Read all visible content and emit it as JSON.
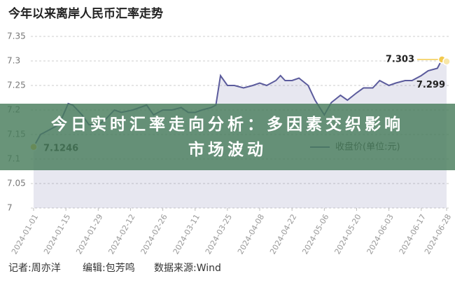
{
  "chart_data": {
    "type": "line",
    "title": "今年以来离岸人民币汇率走势",
    "x": [
      "2024-01-01",
      "2024-01-04",
      "2024-01-08",
      "2024-01-12",
      "2024-01-16",
      "2024-01-18",
      "2024-01-22",
      "2024-01-25",
      "2024-01-29",
      "2024-02-01",
      "2024-02-05",
      "2024-02-08",
      "2024-02-13",
      "2024-02-16",
      "2024-02-19",
      "2024-02-22",
      "2024-02-26",
      "2024-03-01",
      "2024-03-05",
      "2024-03-08",
      "2024-03-11",
      "2024-03-14",
      "2024-03-18",
      "2024-03-20",
      "2024-03-22",
      "2024-03-25",
      "2024-03-28",
      "2024-04-01",
      "2024-04-05",
      "2024-04-08",
      "2024-04-11",
      "2024-04-15",
      "2024-04-17",
      "2024-04-19",
      "2024-04-22",
      "2024-04-25",
      "2024-04-29",
      "2024-05-02",
      "2024-05-06",
      "2024-05-09",
      "2024-05-13",
      "2024-05-16",
      "2024-05-20",
      "2024-05-23",
      "2024-05-27",
      "2024-05-30",
      "2024-06-03",
      "2024-06-06",
      "2024-06-10",
      "2024-06-13",
      "2024-06-17",
      "2024-06-20",
      "2024-06-24",
      "2024-06-26",
      "2024-06-28"
    ],
    "series": [
      {
        "name": "收盘价(单位:元)",
        "color": "#5b5b9c",
        "values": [
          7.1246,
          7.15,
          7.16,
          7.17,
          7.213,
          7.21,
          7.19,
          7.17,
          7.17,
          7.18,
          7.2,
          7.195,
          7.2,
          7.205,
          7.21,
          7.19,
          7.2,
          7.2,
          7.205,
          7.195,
          7.195,
          7.2,
          7.205,
          7.21,
          7.27,
          7.25,
          7.25,
          7.245,
          7.25,
          7.255,
          7.25,
          7.26,
          7.27,
          7.26,
          7.26,
          7.265,
          7.25,
          7.22,
          7.19,
          7.215,
          7.23,
          7.22,
          7.235,
          7.245,
          7.245,
          7.26,
          7.25,
          7.255,
          7.26,
          7.26,
          7.27,
          7.28,
          7.285,
          7.303,
          7.299
        ]
      }
    ],
    "xlim": [
      "2024-01-01",
      "2024-06-28"
    ],
    "xticks": [
      "2024-01-01",
      "2024-01-15",
      "2024-01-29",
      "2024-02-12",
      "2024-02-26",
      "2024-03-11",
      "2024-03-25",
      "2024-04-08",
      "2024-04-22",
      "2024-05-06",
      "2024-05-20",
      "2024-06-03",
      "2024-06-17",
      "2024-06-28"
    ],
    "ylim": [
      7,
      7.35
    ],
    "yticks": [
      7,
      7.05,
      7.1,
      7.15,
      7.2,
      7.25,
      7.3,
      7.35
    ],
    "grid": true,
    "legend": "lower right"
  },
  "banner": {
    "lines": [
      "今日实时汇率走向分析：多因素交织影响",
      "市场波动"
    ]
  },
  "footer": {
    "reporter": "记者:周亦洋",
    "editor": "编辑:包芳鸣",
    "source": "数据来源:Wind"
  }
}
